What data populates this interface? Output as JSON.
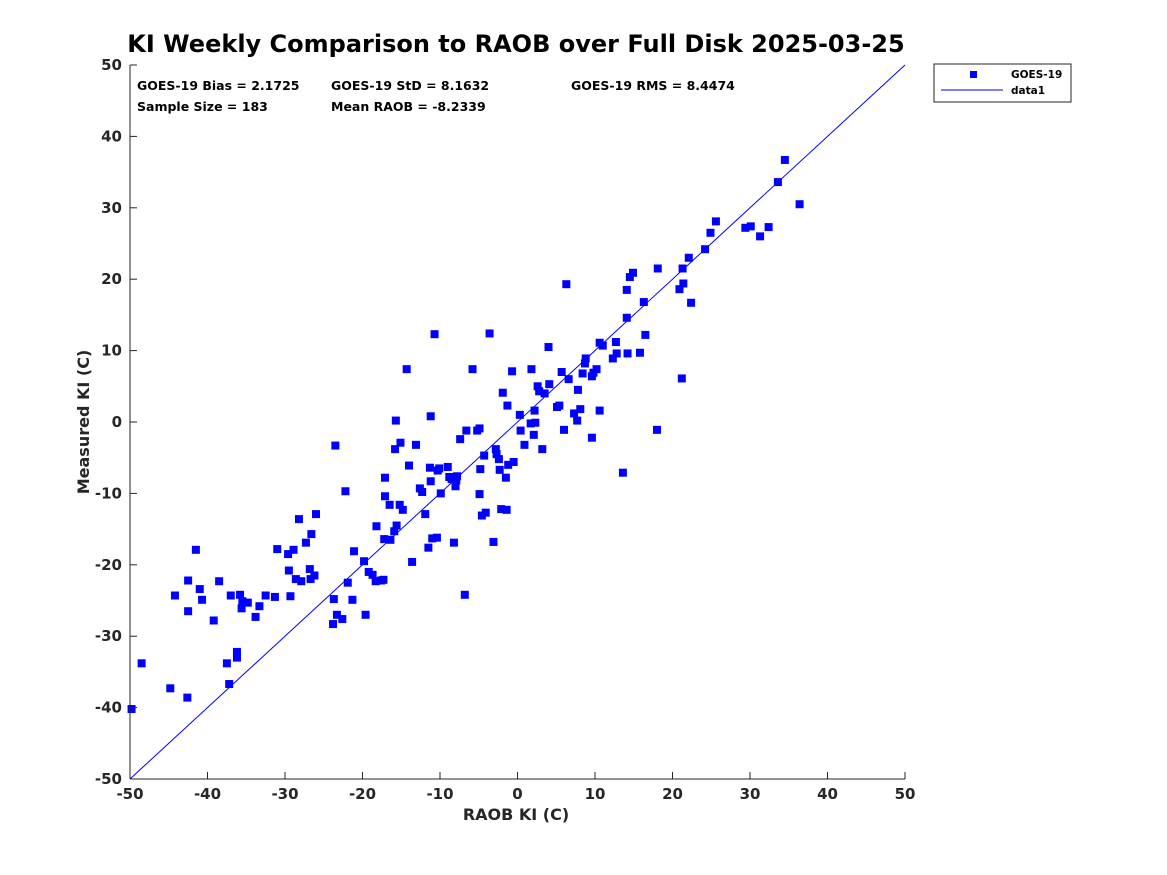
{
  "chart_data": {
    "type": "scatter",
    "title": "KI Weekly Comparison to RAOB over Full Disk 2025-03-25",
    "xlabel": "RAOB KI (C)",
    "ylabel": "Measured KI (C)",
    "xlim": [
      -50,
      50
    ],
    "ylim": [
      -50,
      50
    ],
    "xticks": [
      -50,
      -40,
      -30,
      -20,
      -10,
      0,
      10,
      20,
      30,
      40,
      50
    ],
    "yticks": [
      -50,
      -40,
      -30,
      -20,
      -10,
      0,
      10,
      20,
      30,
      40,
      50
    ],
    "grid": false,
    "legend_position": "outside-top-right",
    "stats": {
      "bias": "GOES-19 Bias = 2.1725",
      "std": "GOES-19 StD = 8.1632",
      "rms": "GOES-19 RMS = 8.4474",
      "sample_size": "Sample Size = 183",
      "mean_raob": "Mean RAOB = -8.2339"
    },
    "series": [
      {
        "name": "GOES-19",
        "kind": "scatter",
        "marker": "square",
        "color": "#0000ff",
        "points": [
          [
            -49.8,
            -40.2
          ],
          [
            -48.5,
            -33.8
          ],
          [
            -44.8,
            -37.3
          ],
          [
            -44.2,
            -24.3
          ],
          [
            -42.5,
            -26.5
          ],
          [
            -42.6,
            -38.6
          ],
          [
            -42.5,
            -22.2
          ],
          [
            -41.5,
            -17.9
          ],
          [
            -41,
            -23.4
          ],
          [
            -40.7,
            -24.9
          ],
          [
            -39.2,
            -27.8
          ],
          [
            -38.5,
            -22.3
          ],
          [
            -37.5,
            -33.8
          ],
          [
            -37.2,
            -36.7
          ],
          [
            -37,
            -24.3
          ],
          [
            -36.2,
            -32.2
          ],
          [
            -36.2,
            -33
          ],
          [
            -35.8,
            -24.2
          ],
          [
            -35.6,
            -26.1
          ],
          [
            -35.5,
            -25.1
          ],
          [
            -34.8,
            -25.3
          ],
          [
            -33.8,
            -27.3
          ],
          [
            -33.3,
            -25.8
          ],
          [
            -32.5,
            -24.3
          ],
          [
            -31.3,
            -24.5
          ],
          [
            -31,
            -17.8
          ],
          [
            -29.6,
            -18.5
          ],
          [
            -29.5,
            -20.8
          ],
          [
            -29.3,
            -24.4
          ],
          [
            -28.9,
            -17.9
          ],
          [
            -28.6,
            -22
          ],
          [
            -28.2,
            -13.6
          ],
          [
            -27.9,
            -22.3
          ],
          [
            -27.3,
            -16.9
          ],
          [
            -26.8,
            -20.6
          ],
          [
            -26.7,
            -22
          ],
          [
            -26.6,
            -15.7
          ],
          [
            -26.2,
            -21.5
          ],
          [
            -26,
            -12.9
          ],
          [
            -23.8,
            -28.3
          ],
          [
            -23.7,
            -24.8
          ],
          [
            -23.5,
            -3.3
          ],
          [
            -23.3,
            -27
          ],
          [
            -22.6,
            -27.6
          ],
          [
            -22.2,
            -9.7
          ],
          [
            -21.9,
            -22.5
          ],
          [
            -21.3,
            -24.9
          ],
          [
            -21.1,
            -18.1
          ],
          [
            -19.8,
            -19.5
          ],
          [
            -19.6,
            -27
          ],
          [
            -19.2,
            -21
          ],
          [
            -18.7,
            -21.4
          ],
          [
            -18.3,
            -22.3
          ],
          [
            -18.2,
            -14.6
          ],
          [
            -17.6,
            -22.2
          ],
          [
            -17.3,
            -22.1
          ],
          [
            -17.2,
            -16.4
          ],
          [
            -17.1,
            -10.4
          ],
          [
            -17.1,
            -7.8
          ],
          [
            -16.5,
            -11.6
          ],
          [
            -16.4,
            -16.5
          ],
          [
            -15.9,
            -15.3
          ],
          [
            -15.8,
            -3.8
          ],
          [
            -15.7,
            0.2
          ],
          [
            -15.6,
            -14.5
          ],
          [
            -15.2,
            -11.6
          ],
          [
            -15.1,
            -2.9
          ],
          [
            -14.8,
            -12.3
          ],
          [
            -14.3,
            7.4
          ],
          [
            -14,
            -6.1
          ],
          [
            -13.6,
            -19.6
          ],
          [
            -13.1,
            -3.2
          ],
          [
            -12.6,
            -9.3
          ],
          [
            -12.3,
            -9.8
          ],
          [
            -11.9,
            -12.9
          ],
          [
            -11.5,
            -17.6
          ],
          [
            -11.3,
            -6.4
          ],
          [
            -11.2,
            -8.3
          ],
          [
            -11.2,
            0.8
          ],
          [
            -11,
            -16.3
          ],
          [
            -10.7,
            12.3
          ],
          [
            -10.4,
            -16.2
          ],
          [
            -10.3,
            -6.8
          ],
          [
            -10.1,
            -6.5
          ],
          [
            -9.9,
            -10
          ],
          [
            -9,
            -6.3
          ],
          [
            -8.8,
            -7.7
          ],
          [
            -8.5,
            -8
          ],
          [
            -8.4,
            -7.8
          ],
          [
            -8.2,
            -16.9
          ],
          [
            -8,
            -9
          ],
          [
            -7.9,
            -8.2
          ],
          [
            -7.8,
            -7.6
          ],
          [
            -7.4,
            -2.4
          ],
          [
            -6.8,
            -24.2
          ],
          [
            -6.6,
            -1.2
          ],
          [
            -5.8,
            7.4
          ],
          [
            -5.2,
            -1.2
          ],
          [
            -4.9,
            -10.1
          ],
          [
            -4.9,
            -0.9
          ],
          [
            -4.8,
            -6.6
          ],
          [
            -4.6,
            -13.1
          ],
          [
            -4.3,
            -4.7
          ],
          [
            -4.1,
            -12.7
          ],
          [
            -3.6,
            12.4
          ],
          [
            -3.1,
            -16.8
          ],
          [
            -2.8,
            -3.8
          ],
          [
            -2.7,
            -4.5
          ],
          [
            -2.4,
            -5.2
          ],
          [
            -2.3,
            -6.7
          ],
          [
            -2.1,
            -12.2
          ],
          [
            -1.9,
            4.1
          ],
          [
            -1.5,
            -7.8
          ],
          [
            -1.4,
            -12.3
          ],
          [
            -1.3,
            2.3
          ],
          [
            -1.2,
            -6
          ],
          [
            -0.7,
            7.1
          ],
          [
            -0.5,
            -5.6
          ],
          [
            0.3,
            1
          ],
          [
            0.4,
            -1.2
          ],
          [
            0.9,
            -3.2
          ],
          [
            1.7,
            -0.2
          ],
          [
            1.8,
            7.4
          ],
          [
            2.1,
            -1.8
          ],
          [
            2.2,
            1.6
          ],
          [
            2.3,
            -0.1
          ],
          [
            2.6,
            5
          ],
          [
            2.8,
            4.3
          ],
          [
            3.2,
            -3.8
          ],
          [
            3.5,
            4
          ],
          [
            4,
            10.5
          ],
          [
            4.1,
            5.3
          ],
          [
            5.1,
            2.1
          ],
          [
            5.4,
            2.3
          ],
          [
            5.7,
            7
          ],
          [
            6,
            -1.1
          ],
          [
            6.3,
            19.3
          ],
          [
            6.6,
            6
          ],
          [
            7.3,
            1.2
          ],
          [
            7.7,
            0.2
          ],
          [
            7.8,
            4.5
          ],
          [
            8.1,
            1.8
          ],
          [
            8.4,
            6.8
          ],
          [
            8.7,
            8.2
          ],
          [
            8.8,
            8.9
          ],
          [
            9.6,
            6.4
          ],
          [
            9.6,
            -2.2
          ],
          [
            9.8,
            6.9
          ],
          [
            10.2,
            7.4
          ],
          [
            10.6,
            1.6
          ],
          [
            10.6,
            11.1
          ],
          [
            11,
            10.7
          ],
          [
            12.3,
            8.9
          ],
          [
            12.7,
            11.2
          ],
          [
            12.8,
            9.6
          ],
          [
            13.6,
            -7.1
          ],
          [
            14.1,
            14.6
          ],
          [
            14.1,
            18.5
          ],
          [
            14.2,
            9.6
          ],
          [
            14.5,
            20.3
          ],
          [
            14.9,
            20.9
          ],
          [
            15.8,
            9.7
          ],
          [
            16.3,
            16.8
          ],
          [
            16.5,
            12.2
          ],
          [
            18,
            -1.1
          ],
          [
            18.1,
            21.5
          ],
          [
            20.9,
            18.6
          ],
          [
            21.2,
            6.1
          ],
          [
            21.3,
            21.5
          ],
          [
            21.4,
            19.4
          ],
          [
            22.1,
            23
          ],
          [
            22.4,
            16.7
          ],
          [
            24.2,
            24.2
          ],
          [
            24.9,
            26.5
          ],
          [
            25.6,
            28.1
          ],
          [
            29.4,
            27.2
          ],
          [
            30.1,
            27.4
          ],
          [
            31.3,
            26
          ],
          [
            32.4,
            27.3
          ],
          [
            33.6,
            33.6
          ],
          [
            34.5,
            36.7
          ],
          [
            36.4,
            30.5
          ]
        ]
      },
      {
        "name": "data1",
        "kind": "line",
        "color": "#0000ff",
        "x": [
          -50,
          50
        ],
        "y": [
          -50,
          50
        ]
      }
    ]
  }
}
